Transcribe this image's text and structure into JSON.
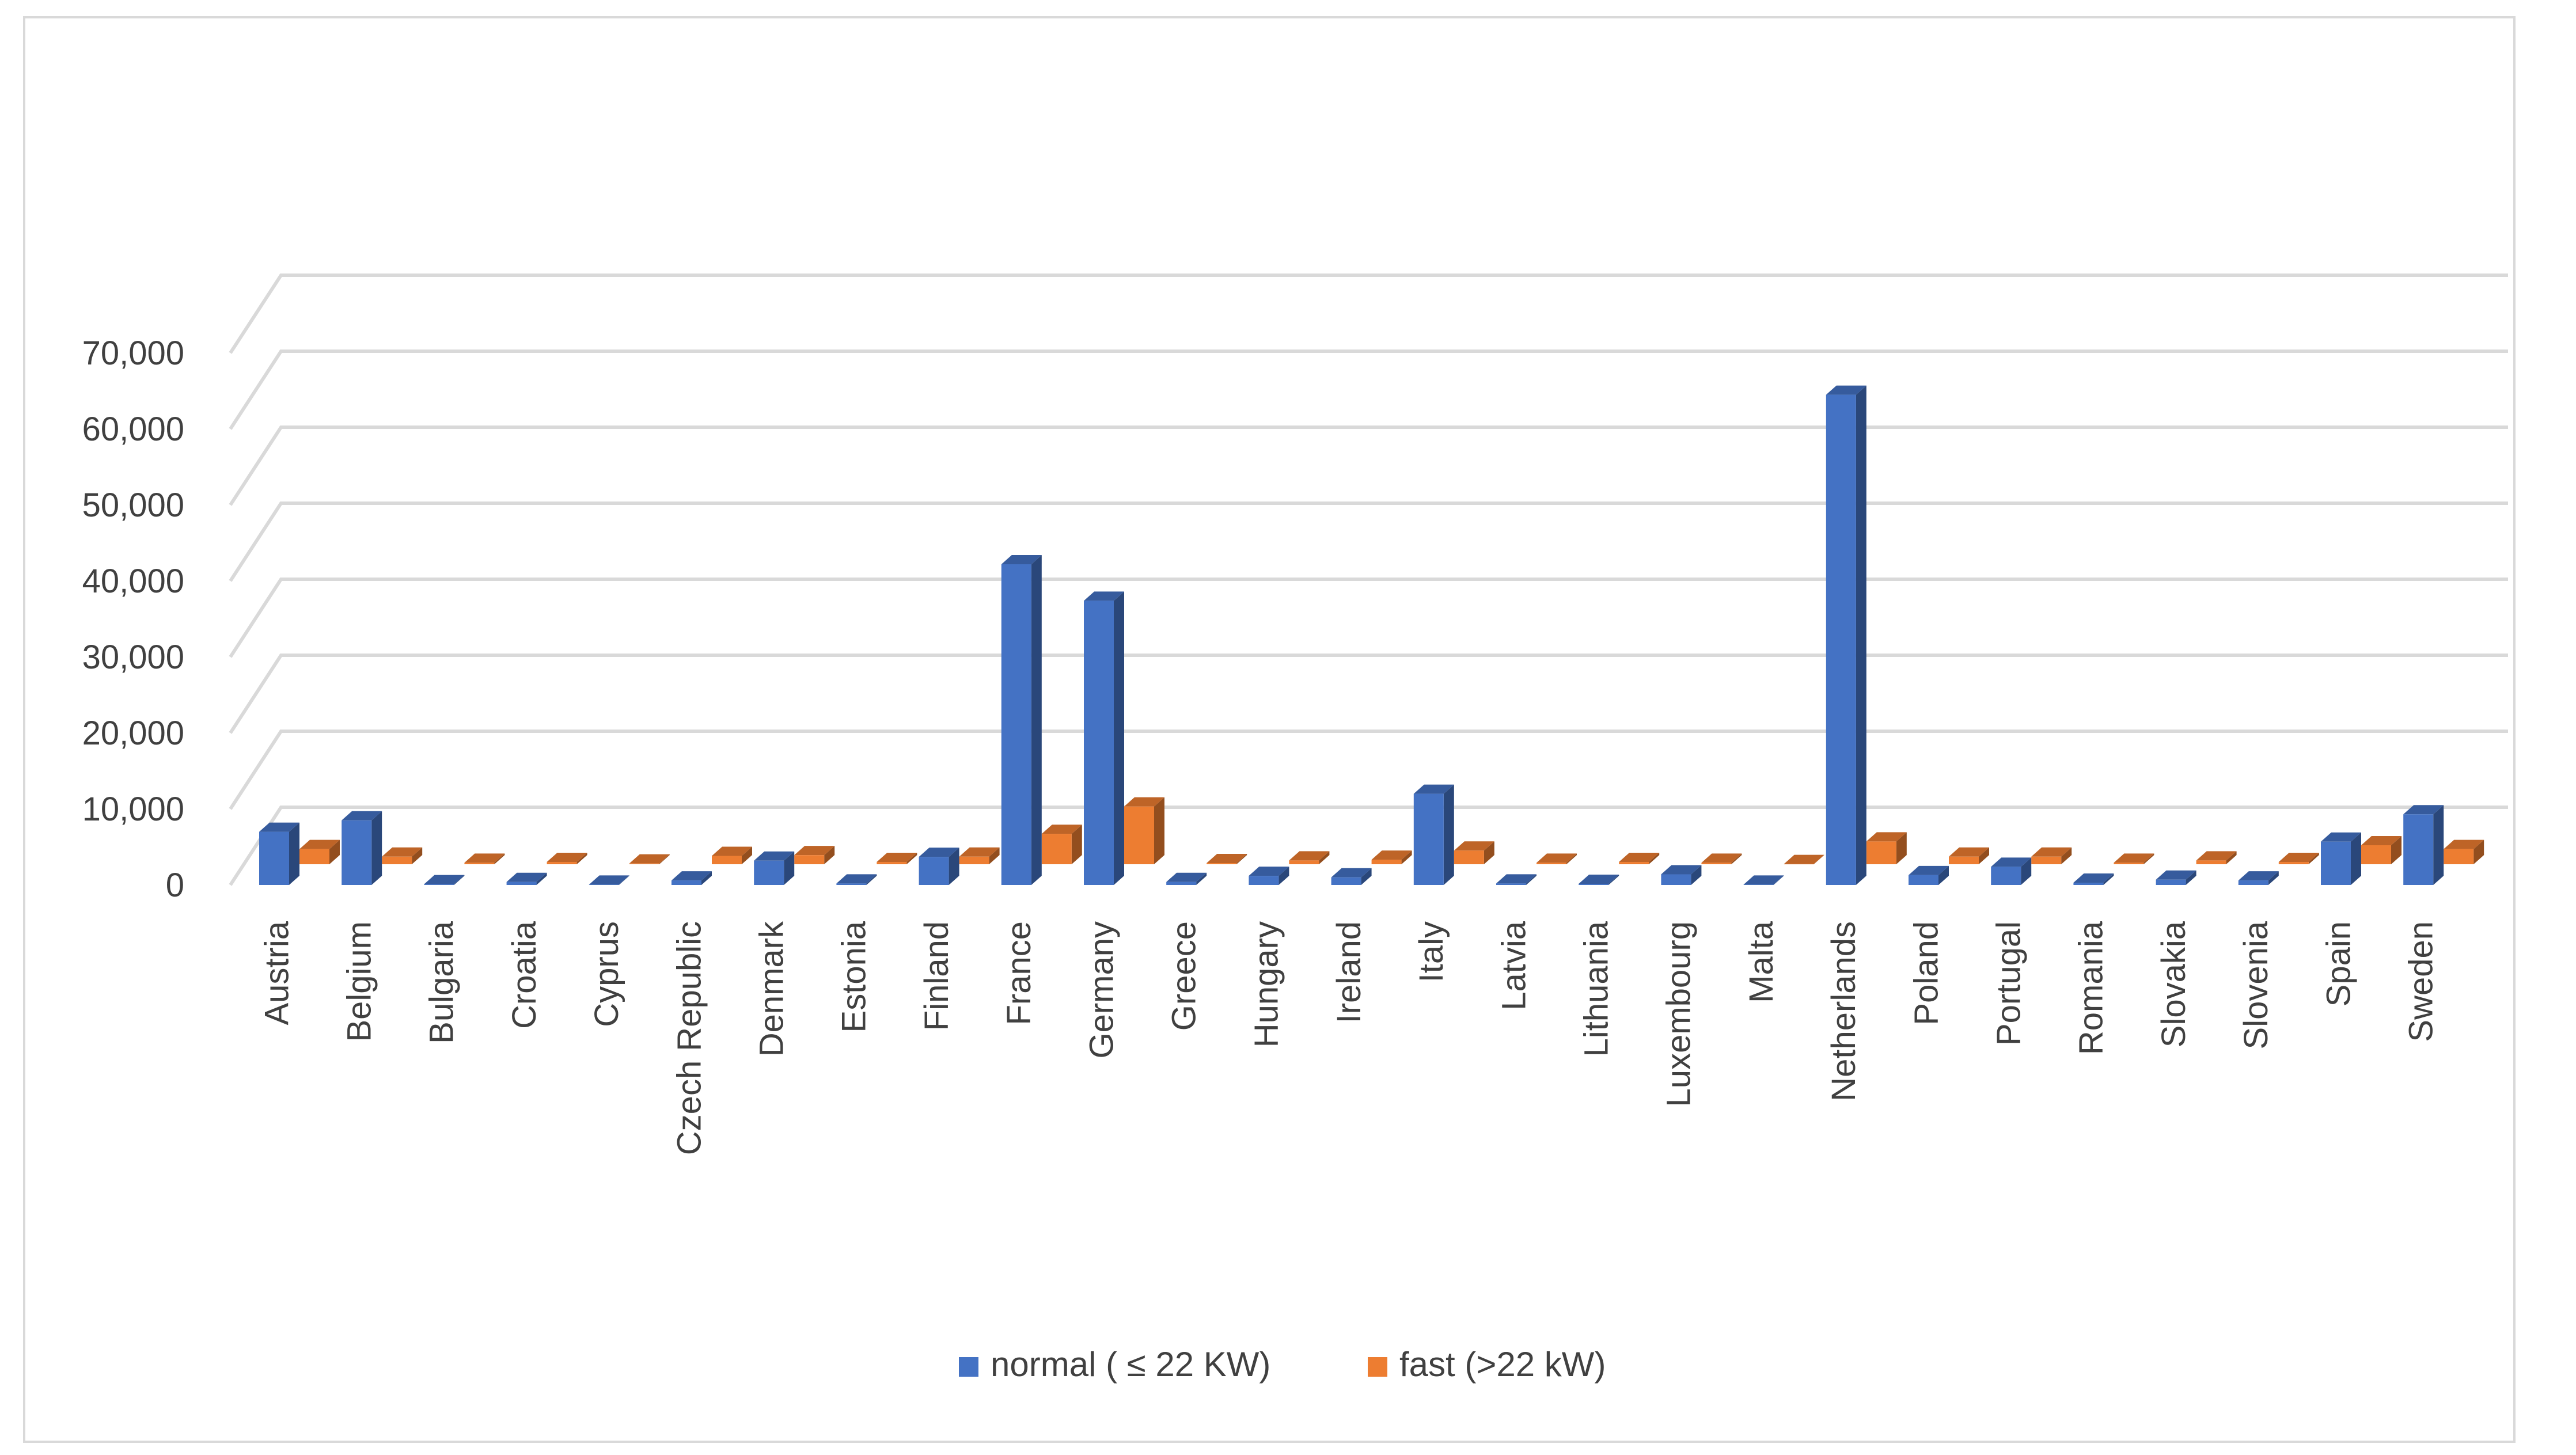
{
  "chart_data": {
    "type": "bar",
    "title": "",
    "xlabel": "",
    "ylabel": "",
    "ylim": [
      0,
      70000
    ],
    "yticks": [
      0,
      10000,
      20000,
      30000,
      40000,
      50000,
      60000,
      70000
    ],
    "ytick_labels": [
      "0",
      "10,000",
      "20,000",
      "30,000",
      "40,000",
      "50,000",
      "60,000",
      "70,000"
    ],
    "grid": true,
    "legend_position": "bottom",
    "style": "3d-clustered-column",
    "categories": [
      "Austria",
      "Belgium",
      "Bulgaria",
      "Croatia",
      "Cyprus",
      "Czech Republic",
      "Denmark",
      "Estonia",
      "Finland",
      "France",
      "Germany",
      "Greece",
      "Hungary",
      "Ireland",
      "Italy",
      "Latvia",
      "Lithuania",
      "Luxembourg",
      "Malta",
      "Netherlands",
      "Poland",
      "Portugal",
      "Romania",
      "Slovakia",
      "Slovenia",
      "Spain",
      "Sweden"
    ],
    "series": [
      {
        "name": "normal ( ≤ 22 KW)",
        "color": "#4472c4",
        "values": [
          7000,
          8500,
          100,
          400,
          50,
          600,
          3200,
          200,
          3700,
          42200,
          37400,
          400,
          1200,
          1000,
          12000,
          200,
          150,
          1400,
          50,
          64500,
          1300,
          2400,
          300,
          700,
          600,
          5700,
          9300
        ]
      },
      {
        "name": "fast (>22 kW)",
        "color": "#ed7d31",
        "values": [
          2000,
          1000,
          200,
          300,
          100,
          1100,
          1200,
          300,
          1000,
          4000,
          7600,
          150,
          500,
          600,
          1800,
          200,
          300,
          200,
          30,
          3000,
          1000,
          1000,
          200,
          500,
          300,
          2500,
          2000
        ]
      }
    ]
  }
}
